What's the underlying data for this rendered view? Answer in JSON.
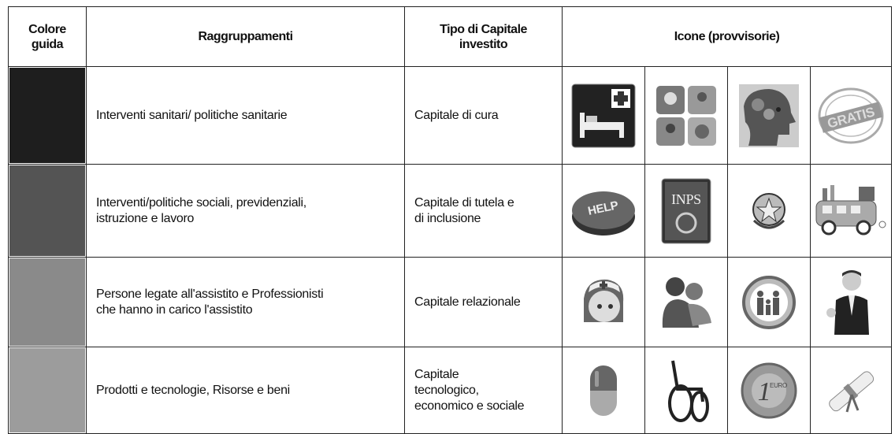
{
  "table": {
    "columns": [
      "Colore\nguida",
      "Raggruppamenti",
      "Tipo di Capitale\ninvestito",
      "Icone (provvisorie)"
    ],
    "rows": [
      {
        "color": "#1e1e1e",
        "group": "Interventi sanitari/ politiche sanitarie",
        "capital": "Capitale di cura"
      },
      {
        "color": "#545454",
        "group": "Interventi/politiche sociali, previdenziali,\nistruzione e lavoro",
        "capital": "Capitale di tutela e\ndi inclusione"
      },
      {
        "color": "#8a8a8a",
        "group": "Persone legate all'assistito e Professionisti\nche hanno in carico l'assistito",
        "capital": "Capitale relazionale"
      },
      {
        "color": "#9c9c9c",
        "group": "Prodotti e tecnologie, Risorse e beni",
        "capital": "Capitale\ntecnologico,\neconomico e sociale"
      }
    ],
    "icon_texts": {
      "gratis": "GRATIS",
      "help": "HELP",
      "inps": "INPS",
      "coin": "1",
      "euro": "EURO"
    }
  }
}
